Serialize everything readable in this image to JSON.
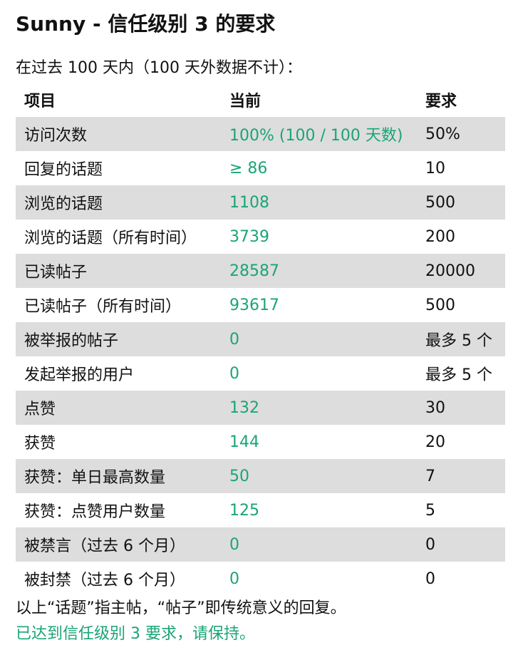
{
  "header": {
    "title": "Sunny - 信任级别 3 的要求",
    "subtitle": "在过去 100 天内（100 天外数据不计）："
  },
  "table": {
    "columns": [
      "项目",
      "当前",
      "要求"
    ],
    "rows": [
      {
        "item": "访问次数",
        "current": "100% (100 / 100 天数)",
        "required": "50%"
      },
      {
        "item": "回复的话题",
        "current": "≥ 86",
        "required": "10"
      },
      {
        "item": "浏览的话题",
        "current": "1108",
        "required": "500"
      },
      {
        "item": "浏览的话题（所有时间）",
        "current": "3739",
        "required": "200"
      },
      {
        "item": "已读帖子",
        "current": "28587",
        "required": "20000"
      },
      {
        "item": "已读帖子（所有时间）",
        "current": "93617",
        "required": "500"
      },
      {
        "item": "被举报的帖子",
        "current": "0",
        "required": "最多 5 个"
      },
      {
        "item": "发起举报的用户",
        "current": "0",
        "required": "最多 5 个"
      },
      {
        "item": "点赞",
        "current": "132",
        "required": "30"
      },
      {
        "item": "获赞",
        "current": "144",
        "required": "20"
      },
      {
        "item": "获赞：单日最高数量",
        "current": "50",
        "required": "7"
      },
      {
        "item": "获赞：点赞用户数量",
        "current": "125",
        "required": "5"
      },
      {
        "item": "被禁言（过去 6 个月）",
        "current": "0",
        "required": "0"
      },
      {
        "item": "被封禁（过去 6 个月）",
        "current": "0",
        "required": "0"
      }
    ]
  },
  "footer": {
    "note": "以上“话题”指主帖，“帖子”即传统意义的回复。",
    "status": "已达到信任级别 3 要求，请保持。"
  },
  "colors": {
    "met": "#1aa574",
    "stripe": "#dddddd"
  }
}
